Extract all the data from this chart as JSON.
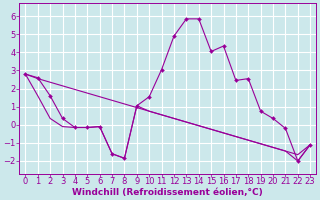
{
  "xlabel": "Windchill (Refroidissement éolien,°C)",
  "background_color": "#cce8eb",
  "grid_color": "#ffffff",
  "line_color": "#990099",
  "xlim": [
    -0.5,
    23.5
  ],
  "ylim": [
    -2.7,
    6.7
  ],
  "yticks": [
    -2,
    -1,
    0,
    1,
    2,
    3,
    4,
    5,
    6
  ],
  "xticks": [
    0,
    1,
    2,
    3,
    4,
    5,
    6,
    7,
    8,
    9,
    10,
    11,
    12,
    13,
    14,
    15,
    16,
    17,
    18,
    19,
    20,
    21,
    22,
    23
  ],
  "line1_x": [
    0,
    1,
    2,
    3,
    4,
    5,
    6,
    7,
    8,
    9,
    10,
    11,
    12,
    13,
    14,
    15,
    16,
    17,
    18,
    19,
    20,
    21,
    22,
    23
  ],
  "line1_y": [
    2.8,
    2.6,
    1.6,
    0.35,
    -0.15,
    -0.15,
    -0.1,
    -1.6,
    -1.85,
    1.05,
    1.55,
    3.05,
    4.9,
    5.85,
    5.85,
    4.05,
    4.35,
    2.45,
    2.55,
    0.75,
    0.35,
    -0.2,
    -2.0,
    -1.1
  ],
  "line2_x": [
    0,
    1,
    2,
    3,
    4,
    5,
    6,
    7,
    8,
    9,
    10,
    11,
    12,
    13,
    14,
    15,
    16,
    17,
    18,
    19,
    20,
    21,
    22,
    23
  ],
  "line2_y": [
    2.8,
    2.55,
    2.35,
    2.15,
    1.95,
    1.75,
    1.55,
    1.35,
    1.15,
    0.95,
    0.75,
    0.55,
    0.35,
    0.15,
    -0.05,
    -0.25,
    -0.45,
    -0.65,
    -0.85,
    -1.05,
    -1.25,
    -1.45,
    -1.65,
    -1.1
  ],
  "line3_x": [
    0,
    1,
    2,
    3,
    4,
    5,
    6,
    7,
    8,
    9,
    10,
    11,
    12,
    13,
    14,
    15,
    16,
    17,
    18,
    19,
    20,
    21,
    22,
    23
  ],
  "line3_y": [
    2.8,
    1.6,
    0.35,
    -0.1,
    -0.15,
    -0.15,
    -0.1,
    -1.6,
    -1.85,
    1.05,
    0.75,
    0.55,
    0.35,
    0.15,
    -0.05,
    -0.25,
    -0.45,
    -0.65,
    -0.85,
    -1.05,
    -1.25,
    -1.45,
    -2.0,
    -1.1
  ],
  "xlabel_fontsize": 6.5,
  "tick_fontsize": 6.0
}
